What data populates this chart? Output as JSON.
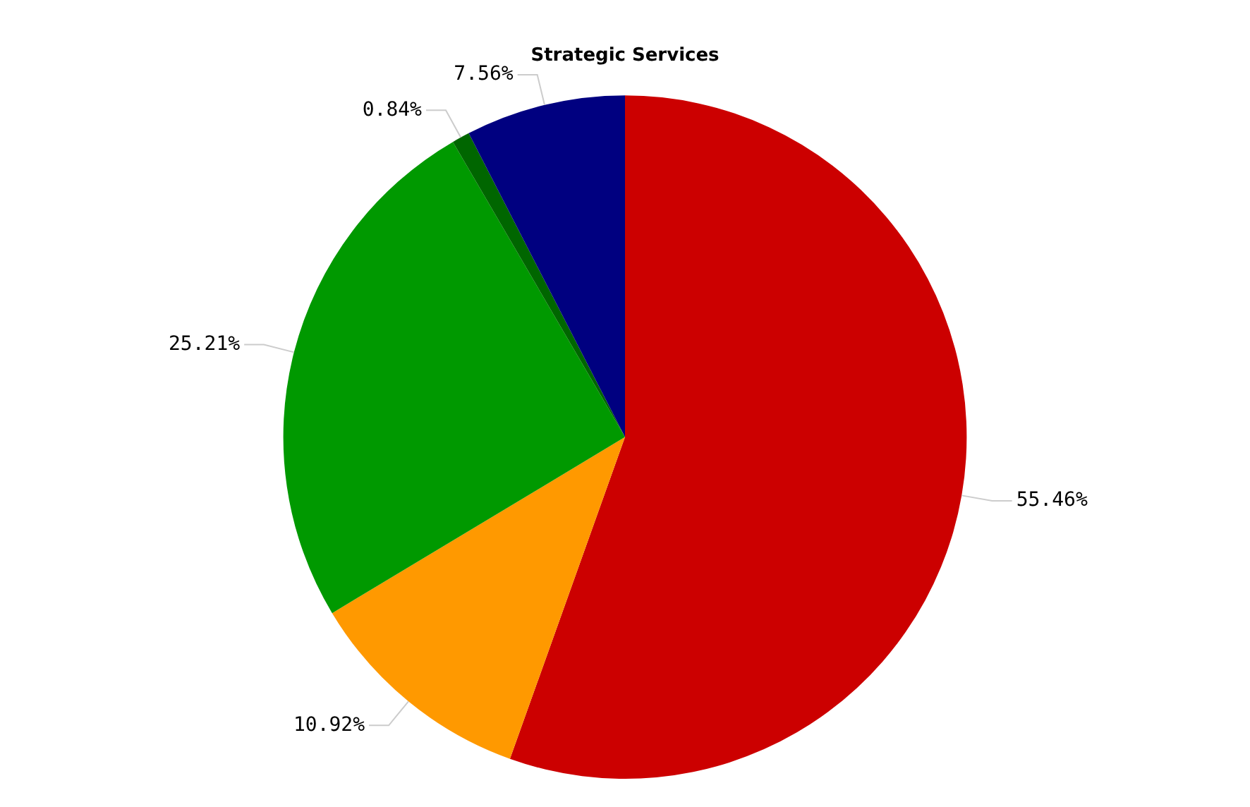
{
  "chart_data": {
    "type": "pie",
    "title": "Strategic Services",
    "categories": [
      null,
      null,
      null,
      null,
      null
    ],
    "values": [
      55.46,
      10.92,
      25.21,
      0.84,
      7.56
    ],
    "colors": [
      "#cc0000",
      "#ff9900",
      "#009900",
      "#006600",
      "#000080"
    ],
    "value_labels": [
      "55.46%",
      "10.92%",
      "25.21%",
      "0.84%",
      "7.56%"
    ],
    "legend": false
  }
}
